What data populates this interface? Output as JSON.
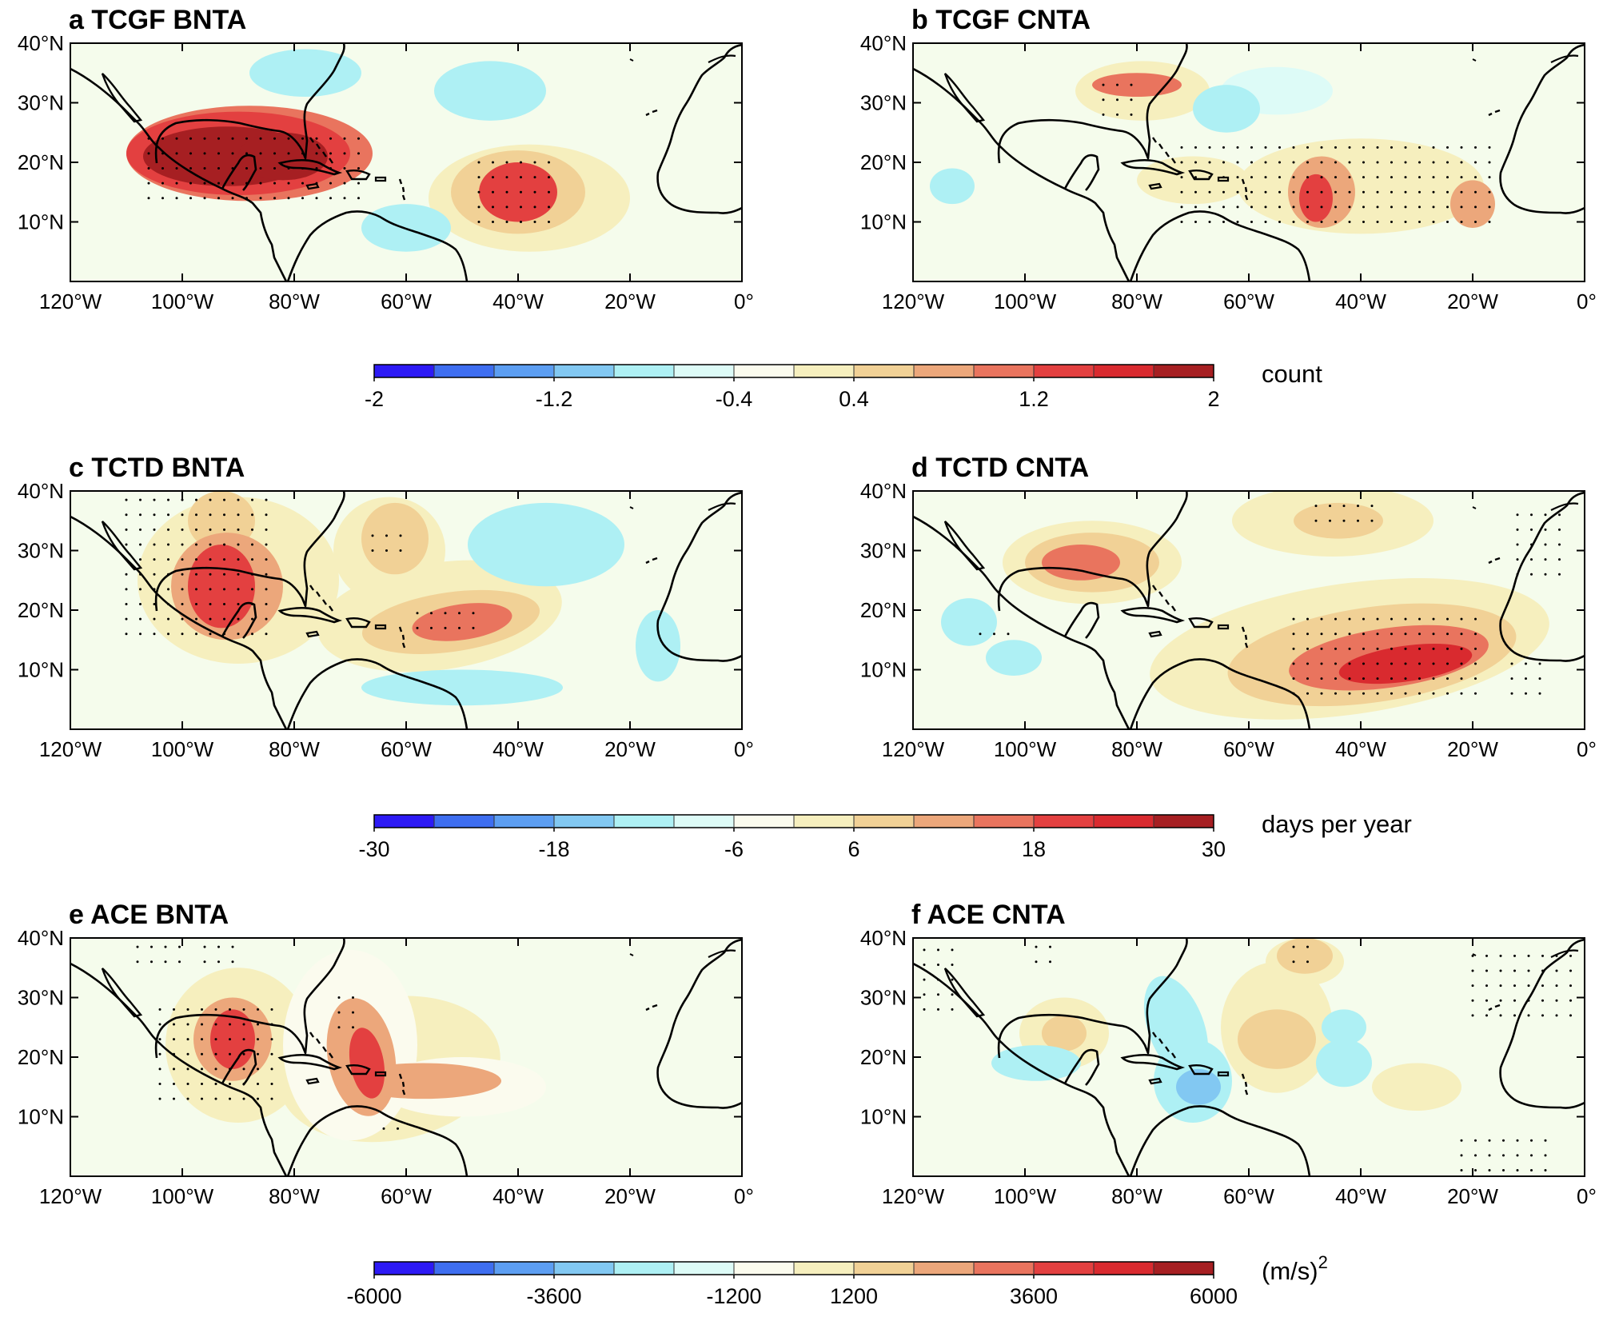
{
  "panels": [
    {
      "letter": "a",
      "title": "TCGF BNTA"
    },
    {
      "letter": "b",
      "title": "TCGF CNTA"
    },
    {
      "letter": "c",
      "title": "TCTD BNTA"
    },
    {
      "letter": "d",
      "title": "TCTD CNTA"
    },
    {
      "letter": "e",
      "title": "ACE BNTA"
    },
    {
      "letter": "f",
      "title": "ACE CNTA"
    }
  ],
  "map": {
    "lon_range": [
      -120,
      0
    ],
    "lat_range": [
      0,
      40
    ],
    "lat_ticks": [
      "40°N",
      "30°N",
      "20°N",
      "10°N"
    ],
    "lon_ticks": [
      "120°W",
      "100°W",
      "80°W",
      "60°W",
      "40°W",
      "20°W",
      "0°"
    ]
  },
  "colorbars": [
    {
      "unit": "count",
      "ticks": [
        "-2",
        "-1.2",
        "-0.4",
        "0.4",
        "1.2",
        "2"
      ],
      "range": [
        -2,
        2
      ]
    },
    {
      "unit": "days per year",
      "ticks": [
        "-30",
        "-18",
        "-6",
        "6",
        "18",
        "30"
      ],
      "range": [
        -30,
        30
      ]
    },
    {
      "unit": "(m/s)",
      "unit_sup": "2",
      "ticks": [
        "-6000",
        "-3600",
        "-1200",
        "1200",
        "3600",
        "6000"
      ],
      "range": [
        -6000,
        6000
      ]
    }
  ],
  "colors": [
    "#2d1af5",
    "#3e6ef0",
    "#5c9ef2",
    "#82c8f2",
    "#aef0f4",
    "#ddfbf7",
    "#fbfbee",
    "#f6efbe",
    "#f1d196",
    "#eca77b",
    "#e9745e",
    "#e34040",
    "#d92a2f",
    "#a61f22"
  ],
  "background_color": "#f5fcec",
  "anomalies": [
    [
      {
        "lon": -92,
        "lat": 21,
        "rx": 15,
        "ry": 5,
        "level": 13,
        "rot": 0
      },
      {
        "lon": -82,
        "lat": 21,
        "rx": 8,
        "ry": 4,
        "level": 13,
        "rot": 0
      },
      {
        "lon": -91,
        "lat": 21,
        "rx": 10,
        "ry": 3.5,
        "level": 12,
        "rot": 0
      },
      {
        "lon": -90,
        "lat": 21.5,
        "rx": 20,
        "ry": 7,
        "level": 11,
        "rot": 0
      },
      {
        "lon": -88,
        "lat": 21.5,
        "rx": 22,
        "ry": 8,
        "level": 10,
        "rot": 0
      },
      {
        "lon": -40,
        "lat": 15,
        "rx": 7,
        "ry": 5,
        "level": 11,
        "rot": 0
      },
      {
        "lon": -40,
        "lat": 15,
        "rx": 12,
        "ry": 7,
        "level": 8,
        "rot": 0
      },
      {
        "lon": -38,
        "lat": 14,
        "rx": 18,
        "ry": 9,
        "level": 7,
        "rot": 0
      },
      {
        "lon": -78,
        "lat": 35,
        "rx": 10,
        "ry": 4,
        "level": 4,
        "rot": 0
      },
      {
        "lon": -60,
        "lat": 9,
        "rx": 8,
        "ry": 4,
        "level": 4,
        "rot": 0
      },
      {
        "lon": -45,
        "lat": 32,
        "rx": 10,
        "ry": 5,
        "level": 4,
        "rot": 0
      }
    ],
    [
      {
        "lon": -80,
        "lat": 33,
        "rx": 8,
        "ry": 2,
        "level": 10,
        "rot": 0
      },
      {
        "lon": -79,
        "lat": 32,
        "rx": 12,
        "ry": 5,
        "level": 7,
        "rot": 0
      },
      {
        "lon": -48,
        "lat": 14,
        "rx": 3,
        "ry": 4,
        "level": 11,
        "rot": 0
      },
      {
        "lon": -47,
        "lat": 15,
        "rx": 6,
        "ry": 6,
        "level": 9,
        "rot": 0
      },
      {
        "lon": -40,
        "lat": 16,
        "rx": 22,
        "ry": 8,
        "level": 7,
        "rot": 0
      },
      {
        "lon": -20,
        "lat": 13,
        "rx": 4,
        "ry": 4,
        "level": 9,
        "rot": 0
      },
      {
        "lon": -70,
        "lat": 17,
        "rx": 10,
        "ry": 4,
        "level": 7,
        "rot": 0
      },
      {
        "lon": -64,
        "lat": 29,
        "rx": 6,
        "ry": 4,
        "level": 4,
        "rot": 0
      },
      {
        "lon": -113,
        "lat": 16,
        "rx": 4,
        "ry": 3,
        "level": 4,
        "rot": 0
      },
      {
        "lon": -55,
        "lat": 32,
        "rx": 10,
        "ry": 4,
        "level": 5,
        "rot": 0
      }
    ],
    [
      {
        "lon": -93,
        "lat": 24,
        "rx": 6,
        "ry": 7,
        "level": 11,
        "rot": 0
      },
      {
        "lon": -92,
        "lat": 24,
        "rx": 10,
        "ry": 9,
        "level": 9,
        "rot": 0
      },
      {
        "lon": -90,
        "lat": 25,
        "rx": 18,
        "ry": 14,
        "level": 7,
        "rot": 0
      },
      {
        "lon": -50,
        "lat": 18,
        "rx": 9,
        "ry": 3,
        "level": 10,
        "rot": -8
      },
      {
        "lon": -52,
        "lat": 18,
        "rx": 16,
        "ry": 5,
        "level": 8,
        "rot": -8
      },
      {
        "lon": -54,
        "lat": 19,
        "rx": 22,
        "ry": 9,
        "level": 7,
        "rot": -8
      },
      {
        "lon": -62,
        "lat": 32,
        "rx": 6,
        "ry": 6,
        "level": 8,
        "rot": 0
      },
      {
        "lon": -63,
        "lat": 30,
        "rx": 10,
        "ry": 9,
        "level": 7,
        "rot": 0
      },
      {
        "lon": -93,
        "lat": 35,
        "rx": 6,
        "ry": 5,
        "level": 8,
        "rot": 0
      },
      {
        "lon": -35,
        "lat": 31,
        "rx": 14,
        "ry": 7,
        "level": 4,
        "rot": 0
      },
      {
        "lon": -15,
        "lat": 14,
        "rx": 4,
        "ry": 6,
        "level": 4,
        "rot": 0
      },
      {
        "lon": -50,
        "lat": 7,
        "rx": 18,
        "ry": 3,
        "level": 4,
        "rot": 0
      }
    ],
    [
      {
        "lon": -32,
        "lat": 11,
        "rx": 12,
        "ry": 3,
        "level": 12,
        "rot": -8
      },
      {
        "lon": -35,
        "lat": 12,
        "rx": 18,
        "ry": 5,
        "level": 10,
        "rot": -8
      },
      {
        "lon": -38,
        "lat": 12.5,
        "rx": 26,
        "ry": 8,
        "level": 8,
        "rot": -8
      },
      {
        "lon": -42,
        "lat": 13.5,
        "rx": 36,
        "ry": 11,
        "level": 7,
        "rot": -8
      },
      {
        "lon": -90,
        "lat": 28,
        "rx": 7,
        "ry": 3,
        "level": 10,
        "rot": 0
      },
      {
        "lon": -88,
        "lat": 28,
        "rx": 12,
        "ry": 5,
        "level": 8,
        "rot": 0
      },
      {
        "lon": -88,
        "lat": 28,
        "rx": 16,
        "ry": 7,
        "level": 7,
        "rot": 0
      },
      {
        "lon": -44,
        "lat": 35,
        "rx": 8,
        "ry": 3,
        "level": 8,
        "rot": 0
      },
      {
        "lon": -45,
        "lat": 35,
        "rx": 18,
        "ry": 6,
        "level": 7,
        "rot": 0
      },
      {
        "lon": -110,
        "lat": 18,
        "rx": 5,
        "ry": 4,
        "level": 4,
        "rot": 0
      },
      {
        "lon": -102,
        "lat": 12,
        "rx": 5,
        "ry": 3,
        "level": 4,
        "rot": 0
      }
    ],
    [
      {
        "lon": -91,
        "lat": 23,
        "rx": 4,
        "ry": 5,
        "level": 11,
        "rot": 0
      },
      {
        "lon": -91,
        "lat": 23,
        "rx": 7,
        "ry": 7,
        "level": 9,
        "rot": 0
      },
      {
        "lon": -90,
        "lat": 22,
        "rx": 13,
        "ry": 13,
        "level": 7,
        "rot": 0
      },
      {
        "lon": -67,
        "lat": 19,
        "rx": 3,
        "ry": 6,
        "level": 11,
        "rot": -10
      },
      {
        "lon": -68,
        "lat": 20,
        "rx": 6,
        "ry": 10,
        "level": 9,
        "rot": -10
      },
      {
        "lon": -57,
        "lat": 16,
        "rx": 14,
        "ry": 3,
        "level": 9,
        "rot": 0
      },
      {
        "lon": -63,
        "lat": 18,
        "rx": 20,
        "ry": 12,
        "level": 7,
        "rot": -10
      },
      {
        "lon": -70,
        "lat": 22,
        "rx": 12,
        "ry": 16,
        "level": 6,
        "rot": 0
      },
      {
        "lon": -50,
        "lat": 15,
        "rx": 15,
        "ry": 5,
        "level": 6,
        "rot": 0
      }
    ],
    [
      {
        "lon": -93,
        "lat": 24,
        "rx": 4,
        "ry": 3,
        "level": 8,
        "rot": 0
      },
      {
        "lon": -93,
        "lat": 24,
        "rx": 8,
        "ry": 6,
        "level": 7,
        "rot": 0
      },
      {
        "lon": -50,
        "lat": 37,
        "rx": 5,
        "ry": 3,
        "level": 8,
        "rot": 0
      },
      {
        "lon": -50,
        "lat": 36,
        "rx": 7,
        "ry": 4,
        "level": 7,
        "rot": 0
      },
      {
        "lon": -55,
        "lat": 23,
        "rx": 7,
        "ry": 5,
        "level": 8,
        "rot": 0
      },
      {
        "lon": -55,
        "lat": 25,
        "rx": 10,
        "ry": 11,
        "level": 7,
        "rot": 0
      },
      {
        "lon": -73,
        "lat": 25,
        "rx": 5,
        "ry": 9,
        "level": 4,
        "rot": -20
      },
      {
        "lon": -69,
        "lat": 15,
        "rx": 4,
        "ry": 3,
        "level": 3,
        "rot": 0
      },
      {
        "lon": -70,
        "lat": 16,
        "rx": 7,
        "ry": 7,
        "level": 4,
        "rot": 0
      },
      {
        "lon": -98,
        "lat": 19,
        "rx": 8,
        "ry": 3,
        "level": 4,
        "rot": 0
      },
      {
        "lon": -43,
        "lat": 19,
        "rx": 5,
        "ry": 4,
        "level": 4,
        "rot": 0
      },
      {
        "lon": -30,
        "lat": 15,
        "rx": 8,
        "ry": 4,
        "level": 7,
        "rot": 0
      },
      {
        "lon": -43,
        "lat": 25,
        "rx": 4,
        "ry": 3,
        "level": 4,
        "rot": 0
      }
    ]
  ],
  "stipples": [
    [
      {
        "lon": [
          -106,
          -68
        ],
        "lat": [
          14,
          25
        ]
      },
      {
        "lon": [
          -47,
          -34
        ],
        "lat": [
          10,
          20
        ]
      }
    ],
    [
      {
        "lon": [
          -86,
          -80
        ],
        "lat": [
          28,
          35
        ]
      },
      {
        "lon": [
          -72,
          -16
        ],
        "lat": [
          10,
          24
        ]
      }
    ],
    [
      {
        "lon": [
          -110,
          -84
        ],
        "lat": [
          16,
          39
        ]
      },
      {
        "lon": [
          -66,
          -60
        ],
        "lat": [
          30,
          34
        ]
      },
      {
        "lon": [
          -58,
          -48
        ],
        "lat": [
          17,
          20
        ]
      }
    ],
    [
      {
        "lon": [
          -52,
          -18
        ],
        "lat": [
          6,
          19
        ]
      },
      {
        "lon": [
          -48,
          -36
        ],
        "lat": [
          35,
          39
        ]
      },
      {
        "lon": [
          -12,
          -4
        ],
        "lat": [
          26,
          37
        ]
      },
      {
        "lon": [
          -13,
          -6
        ],
        "lat": [
          6,
          12
        ]
      },
      {
        "lon": [
          -108,
          -102
        ],
        "lat": [
          16,
          18
        ]
      }
    ],
    [
      {
        "lon": [
          -108,
          -100
        ],
        "lat": [
          36,
          39
        ]
      },
      {
        "lon": [
          -96,
          -90
        ],
        "lat": [
          36,
          39
        ]
      },
      {
        "lon": [
          -104,
          -82
        ],
        "lat": [
          13,
          30
        ]
      },
      {
        "lon": [
          -72,
          -68
        ],
        "lat": [
          25,
          32
        ]
      },
      {
        "lon": [
          -64,
          -60
        ],
        "lat": [
          8,
          10
        ]
      }
    ],
    [
      {
        "lon": [
          -118,
          -112
        ],
        "lat": [
          28,
          39
        ]
      },
      {
        "lon": [
          -98,
          -94
        ],
        "lat": [
          36,
          39
        ]
      },
      {
        "lon": [
          -52,
          -48
        ],
        "lat": [
          36,
          39
        ]
      },
      {
        "lon": [
          -20,
          -2
        ],
        "lat": [
          27,
          38
        ]
      },
      {
        "lon": [
          -22,
          -6
        ],
        "lat": [
          1,
          7
        ]
      }
    ]
  ]
}
